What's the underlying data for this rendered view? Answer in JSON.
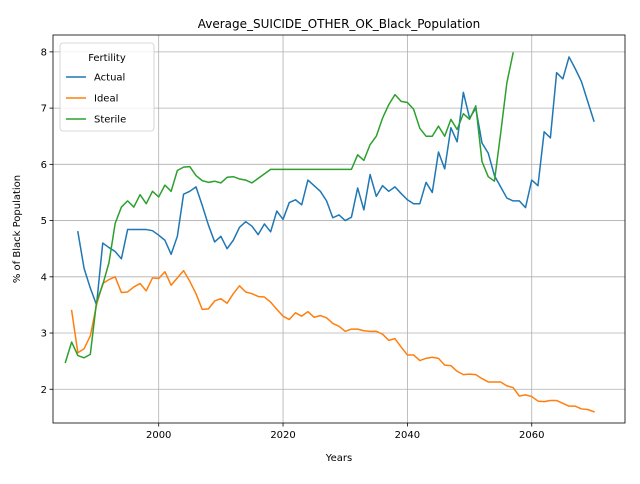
{
  "chart_data": {
    "type": "line",
    "title": "Average_SUICIDE_OTHER_OK_Black_Population",
    "xlabel": "Years",
    "ylabel": "% of Black Population",
    "xlim": [
      1983,
      2075
    ],
    "ylim": [
      1.4,
      8.3
    ],
    "xticks": [
      2000,
      2020,
      2040,
      2060
    ],
    "yticks": [
      2,
      3,
      4,
      5,
      6,
      7,
      8
    ],
    "grid": true,
    "legend": {
      "title": "Fertility",
      "placement": "top-left"
    },
    "series": [
      {
        "name": "Actual",
        "color": "#1f77b4",
        "x": [
          1987,
          1988,
          1989,
          1990,
          1991,
          1992,
          1993,
          1994,
          1995,
          1996,
          1997,
          1998,
          1999,
          2000,
          2001,
          2002,
          2003,
          2004,
          2005,
          2006,
          2007,
          2008,
          2009,
          2010,
          2011,
          2012,
          2013,
          2014,
          2015,
          2016,
          2017,
          2018,
          2019,
          2020,
          2021,
          2022,
          2023,
          2024,
          2025,
          2026,
          2027,
          2028,
          2029,
          2030,
          2031,
          2032,
          2033,
          2034,
          2035,
          2036,
          2037,
          2038,
          2039,
          2040,
          2041,
          2042,
          2043,
          2044,
          2045,
          2046,
          2047,
          2048,
          2049,
          2050,
          2051,
          2052,
          2053,
          2054,
          2055,
          2056,
          2057,
          2058,
          2059,
          2060,
          2061,
          2062,
          2063,
          2064,
          2065,
          2066,
          2067,
          2068,
          2069,
          2070
        ],
        "values": [
          4.8,
          4.15,
          3.8,
          3.5,
          4.6,
          4.52,
          4.45,
          4.32,
          4.84,
          4.84,
          4.84,
          4.84,
          4.82,
          4.74,
          4.65,
          4.4,
          4.72,
          5.47,
          5.52,
          5.6,
          5.27,
          4.92,
          4.62,
          4.72,
          4.5,
          4.65,
          4.88,
          4.98,
          4.9,
          4.75,
          4.94,
          4.8,
          5.17,
          5.02,
          5.32,
          5.37,
          5.28,
          5.72,
          5.62,
          5.52,
          5.35,
          5.05,
          5.1,
          5.0,
          5.06,
          5.58,
          5.19,
          5.82,
          5.43,
          5.62,
          5.52,
          5.6,
          5.48,
          5.37,
          5.3,
          5.3,
          5.68,
          5.5,
          6.22,
          5.92,
          6.65,
          6.4,
          7.28,
          6.82,
          7.0,
          6.38,
          6.2,
          5.8,
          5.6,
          5.4,
          5.35,
          5.35,
          5.23,
          5.72,
          5.62,
          6.58,
          6.47,
          7.63,
          7.52,
          7.91,
          7.7,
          7.47,
          7.12,
          6.77
        ]
      },
      {
        "name": "Ideal",
        "color": "#ff7f0e",
        "x": [
          1986,
          1987,
          1988,
          1989,
          1990,
          1991,
          1992,
          1993,
          1994,
          1995,
          1996,
          1997,
          1998,
          1999,
          2000,
          2001,
          2002,
          2003,
          2004,
          2005,
          2006,
          2007,
          2008,
          2009,
          2010,
          2011,
          2012,
          2013,
          2014,
          2015,
          2016,
          2017,
          2018,
          2019,
          2020,
          2021,
          2022,
          2023,
          2024,
          2025,
          2026,
          2027,
          2028,
          2029,
          2030,
          2031,
          2032,
          2033,
          2034,
          2035,
          2036,
          2037,
          2038,
          2039,
          2040,
          2041,
          2042,
          2043,
          2044,
          2045,
          2046,
          2047,
          2048,
          2049,
          2050,
          2051,
          2052,
          2053,
          2054,
          2055,
          2056,
          2057,
          2058,
          2059,
          2060,
          2061,
          2062,
          2063,
          2064,
          2065,
          2066,
          2067,
          2068,
          2069,
          2070
        ],
        "values": [
          3.4,
          2.65,
          2.72,
          2.95,
          3.5,
          3.88,
          3.95,
          4.0,
          3.72,
          3.73,
          3.82,
          3.88,
          3.75,
          3.98,
          3.97,
          4.09,
          3.85,
          3.98,
          4.11,
          3.92,
          3.7,
          3.42,
          3.43,
          3.57,
          3.61,
          3.53,
          3.7,
          3.84,
          3.73,
          3.7,
          3.65,
          3.64,
          3.55,
          3.42,
          3.3,
          3.24,
          3.36,
          3.3,
          3.38,
          3.28,
          3.31,
          3.27,
          3.17,
          3.12,
          3.03,
          3.07,
          3.07,
          3.04,
          3.03,
          3.03,
          2.98,
          2.87,
          2.9,
          2.75,
          2.61,
          2.61,
          2.51,
          2.55,
          2.57,
          2.55,
          2.43,
          2.42,
          2.32,
          2.26,
          2.27,
          2.26,
          2.19,
          2.13,
          2.13,
          2.13,
          2.06,
          2.03,
          1.88,
          1.9,
          1.87,
          1.79,
          1.78,
          1.8,
          1.8,
          1.75,
          1.7,
          1.7,
          1.65,
          1.64,
          1.6
        ]
      },
      {
        "name": "Sterile",
        "color": "#2ca02c",
        "x": [
          1985,
          1986,
          1987,
          1988,
          1989,
          1990,
          1991,
          1992,
          1993,
          1994,
          1995,
          1996,
          1997,
          1998,
          1999,
          2000,
          2001,
          2002,
          2003,
          2004,
          2005,
          2006,
          2007,
          2008,
          2009,
          2010,
          2011,
          2012,
          2013,
          2014,
          2015,
          2016,
          2017,
          2018,
          2019,
          2020,
          2021,
          2022,
          2023,
          2024,
          2025,
          2026,
          2027,
          2028,
          2029,
          2030,
          2031,
          2032,
          2033,
          2034,
          2035,
          2036,
          2037,
          2038,
          2039,
          2040,
          2041,
          2042,
          2043,
          2044,
          2045,
          2046,
          2047,
          2048,
          2049,
          2050,
          2051,
          2052,
          2053,
          2054,
          2055,
          2056,
          2057
        ],
        "values": [
          2.48,
          2.84,
          2.6,
          2.56,
          2.62,
          3.55,
          3.86,
          4.25,
          4.95,
          5.24,
          5.35,
          5.24,
          5.46,
          5.3,
          5.52,
          5.42,
          5.63,
          5.52,
          5.89,
          5.95,
          5.96,
          5.8,
          5.71,
          5.68,
          5.7,
          5.67,
          5.77,
          5.78,
          5.74,
          5.72,
          5.67,
          5.75,
          5.83,
          5.91,
          5.91,
          5.91,
          5.91,
          5.91,
          5.91,
          5.91,
          5.91,
          5.91,
          5.91,
          5.91,
          5.91,
          5.91,
          5.91,
          6.17,
          6.07,
          6.35,
          6.5,
          6.82,
          7.06,
          7.24,
          7.12,
          7.1,
          6.98,
          6.64,
          6.5,
          6.5,
          6.68,
          6.5,
          6.8,
          6.62,
          6.9,
          6.8,
          7.04,
          6.05,
          5.78,
          5.7,
          6.55,
          7.45,
          7.98
        ]
      }
    ]
  }
}
